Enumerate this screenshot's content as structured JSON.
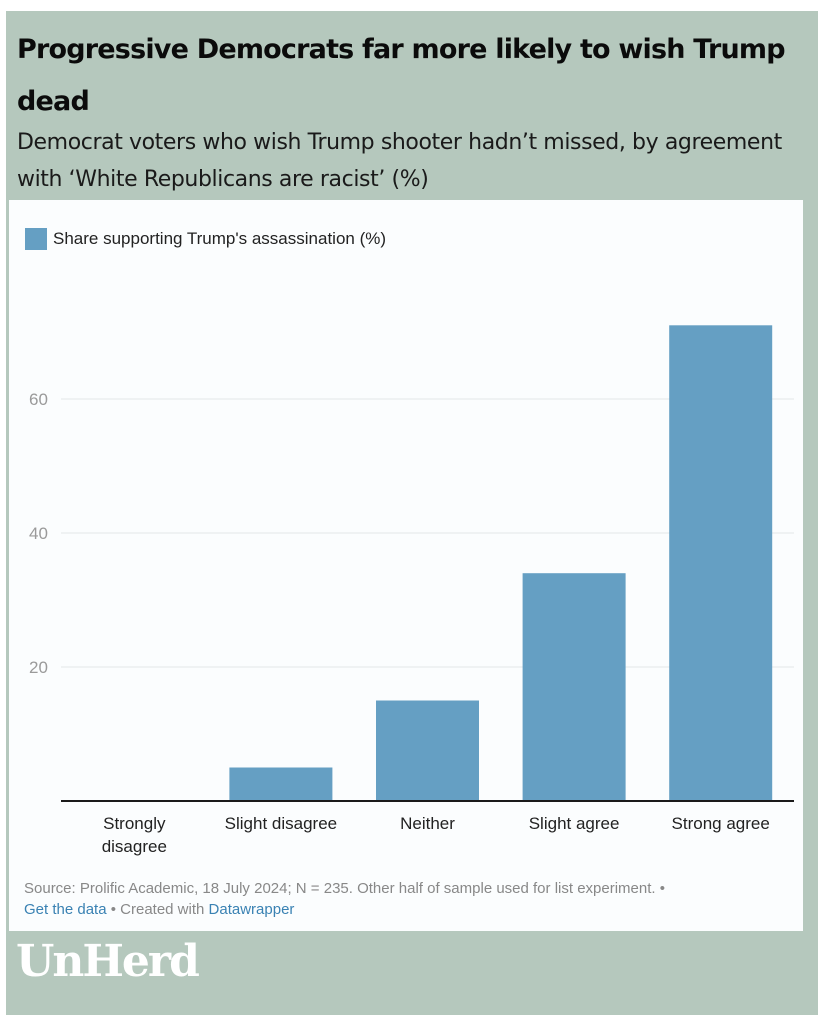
{
  "title": "Progressive Democrats far more likely to wish Trump dead",
  "subtitle": "Democrat voters who wish Trump shooter hadn’t missed, by agreement with ‘White Republicans are racist’ (%)",
  "legend": {
    "label": "Share supporting Trump's assassination (%)",
    "color": "#659fc3"
  },
  "footer": {
    "source": "Source: Prolific Academic, 18 July 2024; N = 235. Other half of sample used for list experiment. •",
    "get_data": "Get the data",
    "created_with": " • Created with ",
    "datawrapper": "Datawrapper"
  },
  "logo": "UnHerd",
  "colors": {
    "background": "#b5c8bd",
    "bar": "#659fc3",
    "panel": "#fbfdfe"
  },
  "chart_data": {
    "type": "bar",
    "title": "Progressive Democrats far more likely to wish Trump dead",
    "subtitle": "Democrat voters who wish Trump shooter hadn’t missed, by agreement with ‘White Republicans are racist’ (%)",
    "categories": [
      "Strongly disagree",
      "Slight disagree",
      "Neither",
      "Slight agree",
      "Strong agree"
    ],
    "category_lines": [
      [
        "Strongly",
        "disagree"
      ],
      [
        "Slight disagree"
      ],
      [
        "Neither"
      ],
      [
        "Slight agree"
      ],
      [
        "Strong agree"
      ]
    ],
    "series": [
      {
        "name": "Share supporting Trump's assassination (%)",
        "values": [
          0,
          5,
          15,
          34,
          71
        ]
      }
    ],
    "yticks": [
      20,
      40,
      60
    ],
    "ylim": [
      0,
      75
    ],
    "xlabel": "",
    "ylabel": "",
    "grid": true,
    "legend_position": "top-left"
  }
}
